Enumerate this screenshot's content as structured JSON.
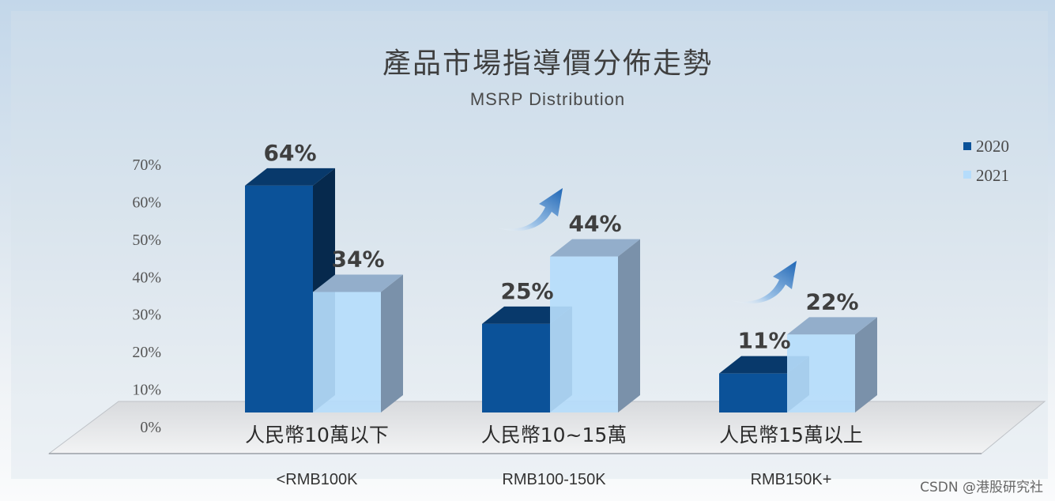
{
  "chart_data": {
    "type": "bar",
    "title": "產品市場指導價分佈走勢",
    "subtitle": "MSRP Distribution",
    "categories": [
      "人民幣10萬以下",
      "人民幣10~15萬",
      "人民幣15萬以上"
    ],
    "category_subtitles": [
      "<RMB100K",
      "RMB100-150K",
      "RMB150K+"
    ],
    "series": [
      {
        "name": "2020",
        "values": [
          64,
          25,
          11
        ],
        "labels": [
          "64%",
          "25%",
          "11%"
        ],
        "color": "#0b5299"
      },
      {
        "name": "2021",
        "values": [
          34,
          44,
          22
        ],
        "labels": [
          "34%",
          "44%",
          "22%"
        ],
        "color": "#b5dcfb"
      }
    ],
    "y_ticks": [
      "0%",
      "10%",
      "20%",
      "30%",
      "40%",
      "50%",
      "60%",
      "70%"
    ],
    "ylim": [
      0,
      70
    ],
    "grid": false,
    "legend_position": "top-right",
    "trend_arrows": [
      "up",
      "up"
    ]
  },
  "watermark": "CSDN @港股研究社"
}
